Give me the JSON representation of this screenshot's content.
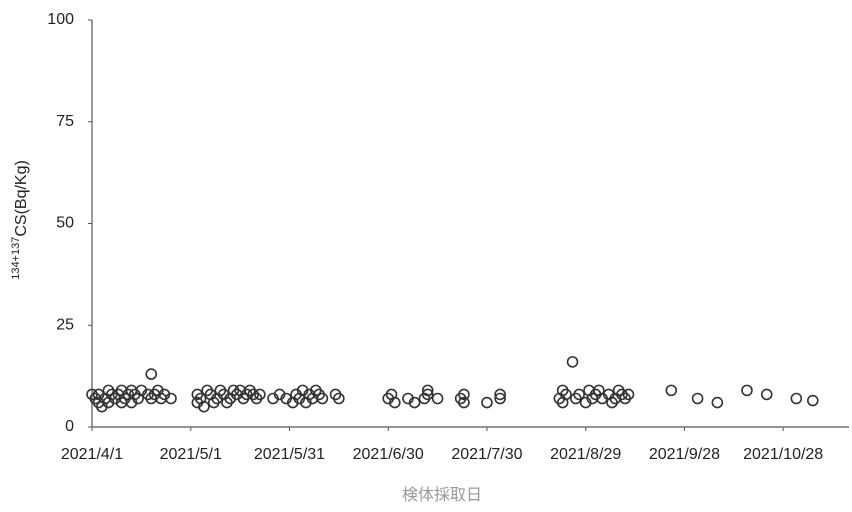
{
  "chart_data": {
    "type": "scatter",
    "y_label": {
      "sup": "134+137",
      "text": "CS(Bq/Kg)"
    },
    "x_label": "検体採取日",
    "color": "#333333",
    "x": [
      "2021/4/1",
      "2021/4/2",
      "2021/4/3",
      "2021/4/3",
      "2021/4/4",
      "2021/4/5",
      "2021/4/6",
      "2021/4/6",
      "2021/4/7",
      "2021/4/8",
      "2021/4/9",
      "2021/4/10",
      "2021/4/10",
      "2021/4/11",
      "2021/4/12",
      "2021/4/13",
      "2021/4/13",
      "2021/4/14",
      "2021/4/15",
      "2021/4/16",
      "2021/4/18",
      "2021/4/19",
      "2021/4/19",
      "2021/4/20",
      "2021/4/21",
      "2021/4/22",
      "2021/4/23",
      "2021/4/25",
      "2021/5/3",
      "2021/5/3",
      "2021/5/4",
      "2021/5/5",
      "2021/5/6",
      "2021/5/7",
      "2021/5/8",
      "2021/5/9",
      "2021/5/10",
      "2021/5/11",
      "2021/5/12",
      "2021/5/13",
      "2021/5/14",
      "2021/5/15",
      "2021/5/16",
      "2021/5/17",
      "2021/5/18",
      "2021/5/19",
      "2021/5/20",
      "2021/5/21",
      "2021/5/22",
      "2021/5/26",
      "2021/5/28",
      "2021/5/30",
      "2021/6/1",
      "2021/6/2",
      "2021/6/3",
      "2021/6/4",
      "2021/6/5",
      "2021/6/6",
      "2021/6/7",
      "2021/6/8",
      "2021/6/9",
      "2021/6/10",
      "2021/6/14",
      "2021/6/15",
      "2021/6/30",
      "2021/7/1",
      "2021/7/2",
      "2021/7/6",
      "2021/7/8",
      "2021/7/11",
      "2021/7/12",
      "2021/7/12",
      "2021/7/15",
      "2021/7/22",
      "2021/7/23",
      "2021/7/23",
      "2021/7/30",
      "2021/8/3",
      "2021/8/3",
      "2021/8/21",
      "2021/8/22",
      "2021/8/22",
      "2021/8/23",
      "2021/8/25",
      "2021/8/26",
      "2021/8/27",
      "2021/8/29",
      "2021/8/30",
      "2021/8/31",
      "2021/9/1",
      "2021/9/2",
      "2021/9/3",
      "2021/9/5",
      "2021/9/6",
      "2021/9/7",
      "2021/9/8",
      "2021/9/9",
      "2021/9/10",
      "2021/9/11",
      "2021/9/24",
      "2021/10/2",
      "2021/10/8",
      "2021/10/17",
      "2021/10/23",
      "2021/11/1",
      "2021/11/6"
    ],
    "values": [
      8,
      7,
      6,
      8,
      5,
      7,
      9,
      6,
      8,
      7,
      8,
      6,
      9,
      7,
      8,
      9,
      6,
      8,
      7,
      9,
      8,
      13,
      7,
      8,
      9,
      7,
      8,
      7,
      8,
      6,
      7,
      5,
      9,
      8,
      6,
      7,
      9,
      8,
      6,
      7,
      9,
      8,
      9,
      7,
      8,
      9,
      8,
      7,
      8,
      7,
      8,
      7,
      6,
      8,
      7,
      9,
      6,
      8,
      7,
      9,
      8,
      7,
      8,
      7,
      7,
      8,
      6,
      7,
      6,
      7,
      9,
      8,
      7,
      7,
      6,
      8,
      6,
      8,
      7,
      7,
      9,
      6,
      8,
      16,
      7,
      8,
      6,
      9,
      7,
      8,
      9,
      7,
      8,
      6,
      7,
      9,
      8,
      7,
      8,
      9,
      7,
      6,
      9,
      8,
      7,
      6.5
    ],
    "xlim": [
      "2021/4/1",
      "2021/11/17"
    ],
    "xticks": [
      "2021/4/1",
      "2021/5/1",
      "2021/5/31",
      "2021/6/30",
      "2021/7/30",
      "2021/8/29",
      "2021/9/28",
      "2021/10/28"
    ],
    "ylim": [
      0,
      100
    ],
    "yticks": [
      0,
      25,
      50,
      75,
      100
    ],
    "grid": false
  }
}
